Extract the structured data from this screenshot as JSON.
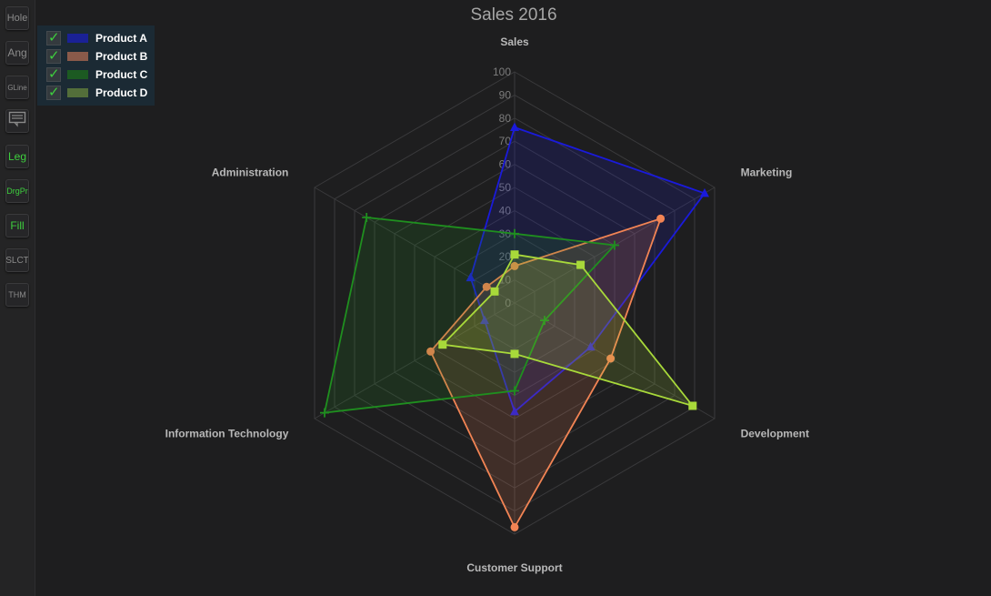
{
  "toolbar": {
    "buttons": [
      {
        "label": "Hole",
        "active": false
      },
      {
        "label": "Ang",
        "active": false
      },
      {
        "label": "GLine",
        "active": false
      },
      {
        "label": "",
        "icon": "comment-icon",
        "active": false
      },
      {
        "label": "Leg",
        "active": true
      },
      {
        "label": "DrgPr",
        "active": true
      },
      {
        "label": "Fill",
        "active": true
      },
      {
        "label": "SLCT",
        "active": false
      },
      {
        "label": "THM",
        "active": false
      }
    ]
  },
  "colors": {
    "background": "#1e1e1f",
    "grid": "#3a3a3c",
    "title": "#a6a6a6",
    "axis_label": "#b8b8b8",
    "tick_label": "#7c7c7c",
    "legend_bg": "#1b2a34",
    "checkmark": "#3ecf3e"
  },
  "chart_data": {
    "type": "radar",
    "title": "Sales 2016",
    "axes": [
      "Sales",
      "Marketing",
      "Development",
      "Customer Support",
      "Information Technology",
      "Administration"
    ],
    "rlim": [
      0,
      100
    ],
    "ticks": [
      0,
      10,
      20,
      30,
      40,
      50,
      60,
      70,
      80,
      90,
      100
    ],
    "grid": true,
    "fill": true,
    "legend_position": "top-left",
    "series": [
      {
        "name": "Product A",
        "values": [
          76,
          95,
          38,
          47,
          15,
          22
        ],
        "color": "#1a1adb",
        "swatch": "#1a2196",
        "marker": "triangle"
      },
      {
        "name": "Product B",
        "values": [
          16,
          73,
          48,
          97,
          42,
          14
        ],
        "color": "#f28454",
        "swatch": "#8a5a4a",
        "marker": "circle"
      },
      {
        "name": "Product C",
        "values": [
          30,
          50,
          15,
          38,
          95,
          74
        ],
        "color": "#1f8f1f",
        "swatch": "#1c5a22",
        "marker": "plus"
      },
      {
        "name": "Product D",
        "values": [
          21,
          33,
          89,
          22,
          36,
          10
        ],
        "color": "#a8d93a",
        "swatch": "#536e3a",
        "marker": "square"
      }
    ]
  }
}
